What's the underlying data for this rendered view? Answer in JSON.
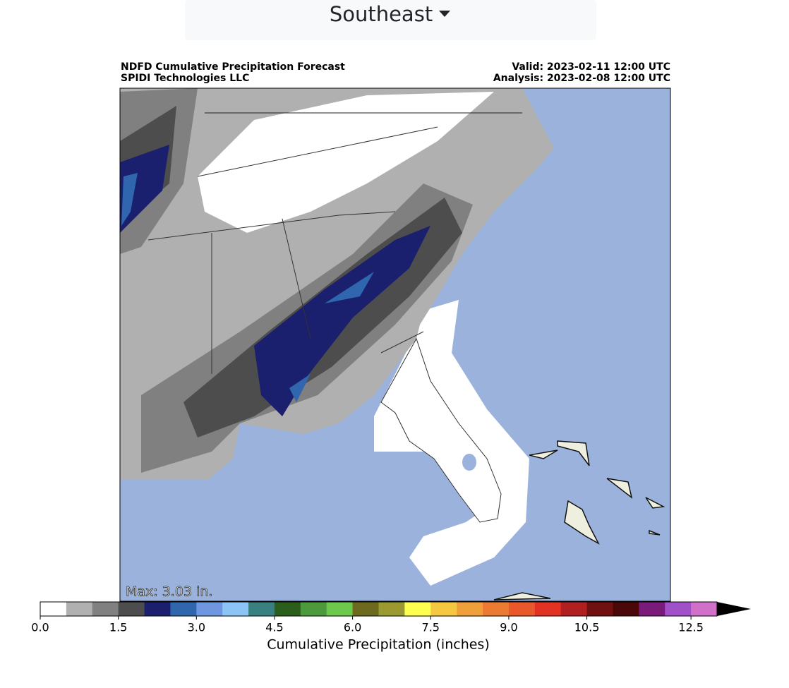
{
  "dropdown": {
    "label": "Southeast"
  },
  "header": {
    "title": "NDFD Cumulative Precipitation Forecast",
    "subtitle": "SPIDI Technologies LLC",
    "valid": "Valid: 2023-02-11 12:00 UTC",
    "analysis": "Analysis: 2023-02-08 12:00 UTC"
  },
  "map": {
    "annotation": "Max: 3.03 in."
  },
  "colorbar": {
    "label": "Cumulative Precipitation (inches)",
    "xlim": [
      0,
      13
    ],
    "colors": [
      "#ffffff",
      "#b0b0b0",
      "#808080",
      "#4d4d4d",
      "#1a1f6e",
      "#2f66ad",
      "#6e97e0",
      "#8cc4f5",
      "#3b8080",
      "#2a5e1a",
      "#4c9a3c",
      "#6cc94c",
      "#6b6a1e",
      "#9a9a30",
      "#ffff50",
      "#f5c842",
      "#f0a03a",
      "#ec7a32",
      "#e8582a",
      "#e23224",
      "#b02020",
      "#701010",
      "#4a0808",
      "#7a1a7a",
      "#a050c8",
      "#d070c8"
    ],
    "extend_color": "#000000",
    "ticks": [
      {
        "value": 0,
        "label": "0.0"
      },
      {
        "value": 1.5,
        "label": "1.5"
      },
      {
        "value": 3,
        "label": "3.0"
      },
      {
        "value": 4.5,
        "label": "4.5"
      },
      {
        "value": 6,
        "label": "6.0"
      },
      {
        "value": 7.5,
        "label": "7.5"
      },
      {
        "value": 9,
        "label": "9.0"
      },
      10.5,
      12.5
    ]
  }
}
